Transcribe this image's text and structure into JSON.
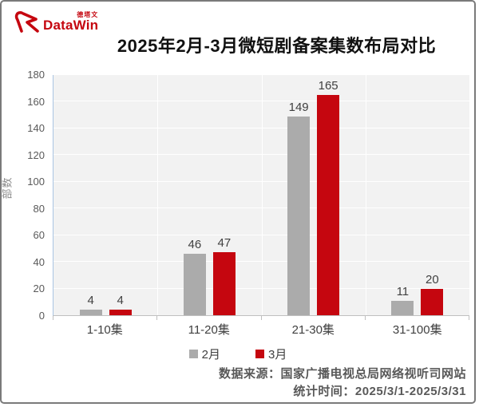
{
  "header": {
    "logo_cn": "德塔文",
    "logo_text": "DataWin",
    "title": "2025年2月-3月微短剧备案集数布局对比"
  },
  "chart_data": {
    "type": "bar",
    "title": "2025年2月-3月微短剧备案集数布局对比",
    "ylabel": "部数",
    "xlabel": "",
    "categories": [
      "1-10集",
      "11-20集",
      "21-30集",
      "31-100集"
    ],
    "series": [
      {
        "name": "2月",
        "color": "#ABABAB",
        "values": [
          4,
          46,
          149,
          11
        ]
      },
      {
        "name": "3月",
        "color": "#C5060F",
        "values": [
          4,
          47,
          165,
          20
        ]
      }
    ],
    "ylim": [
      0,
      180
    ],
    "ytick_step": 20,
    "grid": true,
    "legend_position": "bottom"
  },
  "footer": {
    "source": "数据来源：国家广播电视总局网络视听司网站",
    "period": "统计时间：2025/3/1-2025/3/31"
  },
  "colors": {
    "brand_red": "#C5060F",
    "bar_gray": "#ABABAB",
    "plot_bg": "#F2F2F2",
    "grid_white": "#FFFFFF",
    "axis_text": "#595959",
    "label_text": "#404040"
  }
}
